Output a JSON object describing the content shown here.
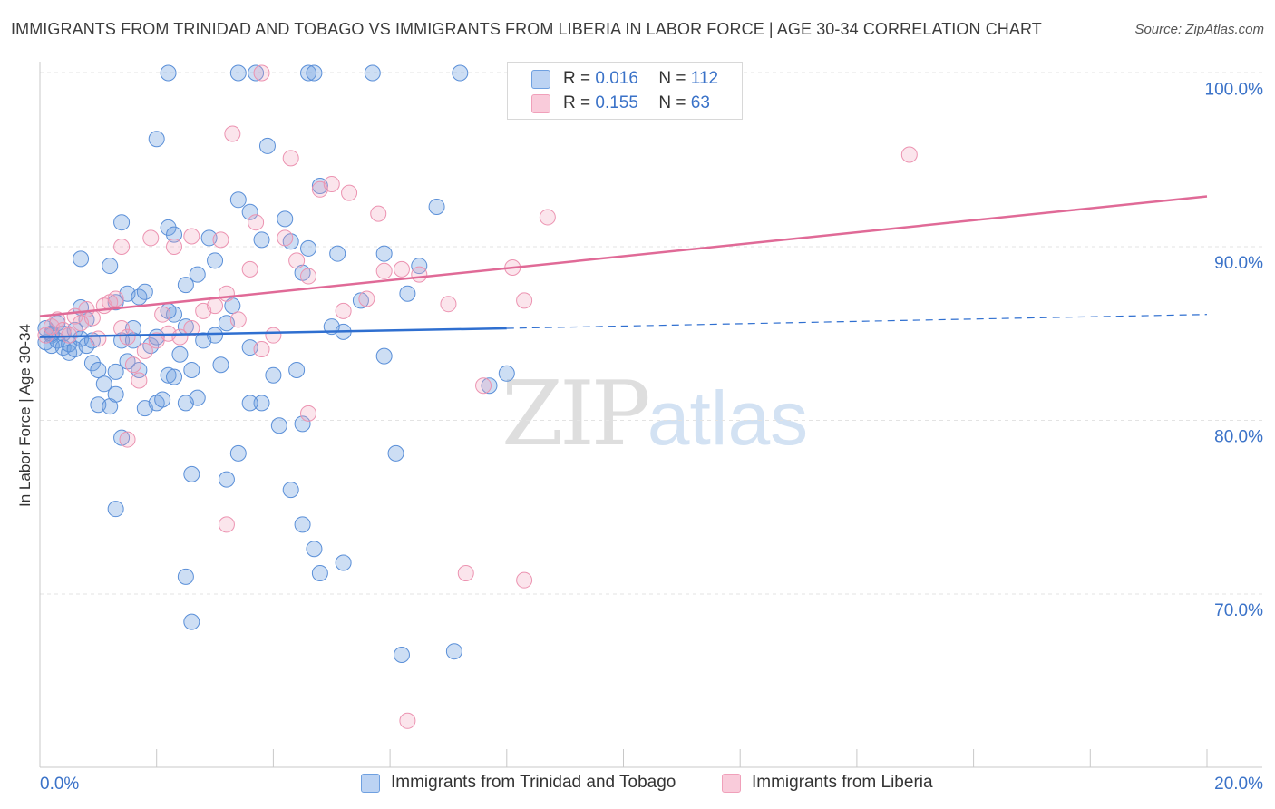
{
  "title": "IMMIGRANTS FROM TRINIDAD AND TOBAGO VS IMMIGRANTS FROM LIBERIA IN LABOR FORCE | AGE 30-34 CORRELATION CHART",
  "source": "Source: ZipAtlas.com",
  "watermark": {
    "zip": "ZIP",
    "atlas": "atlas"
  },
  "legend": {
    "r_label": "R =",
    "n_label": "N =",
    "rows": [
      {
        "r": "0.016",
        "n": "112",
        "color": "#6fa0e0"
      },
      {
        "r": "0.155",
        "n": "63",
        "color": "#f0a0ba"
      }
    ]
  },
  "chart_data": {
    "type": "scatter",
    "title": "IMMIGRANTS FROM TRINIDAD AND TOBAGO VS IMMIGRANTS FROM LIBERIA IN LABOR FORCE | AGE 30-34 CORRELATION CHART",
    "ylabel": "In Labor Force | Age 30-34",
    "xlabel": "",
    "xlim": [
      0,
      20
    ],
    "ylim": [
      60,
      102
    ],
    "x_tick_labels": [
      "0.0%",
      "20.0%"
    ],
    "y_tick_labels": [
      "100.0%",
      "90.0%",
      "80.0%",
      "70.0%"
    ],
    "y_ticks": [
      100,
      90,
      80,
      70
    ],
    "grid": true,
    "legend_position": "top-center",
    "series": [
      {
        "name": "Immigrants from Trinidad and Tobago",
        "color": "#6fa0e0",
        "r": 0.016,
        "n": 112,
        "trend": {
          "x0": 0,
          "y0": 84.8,
          "x1": 8,
          "y1": 85.3,
          "dashed_to_x": 20,
          "dashed_to_y": 86.1
        },
        "points": [
          [
            0.1,
            84.5
          ],
          [
            0.1,
            85.3
          ],
          [
            0.2,
            84.9
          ],
          [
            0.2,
            84.3
          ],
          [
            0.3,
            85.6
          ],
          [
            0.3,
            84.6
          ],
          [
            0.4,
            84.2
          ],
          [
            0.4,
            85.0
          ],
          [
            0.5,
            83.9
          ],
          [
            0.5,
            84.4
          ],
          [
            0.6,
            85.2
          ],
          [
            0.6,
            84.1
          ],
          [
            0.7,
            84.7
          ],
          [
            0.7,
            86.5
          ],
          [
            0.8,
            84.3
          ],
          [
            0.8,
            85.8
          ],
          [
            0.9,
            83.3
          ],
          [
            0.9,
            84.6
          ],
          [
            1.0,
            82.9
          ],
          [
            1.0,
            80.9
          ],
          [
            1.1,
            82.1
          ],
          [
            1.2,
            80.8
          ],
          [
            1.3,
            81.5
          ],
          [
            1.3,
            82.8
          ],
          [
            1.4,
            84.6
          ],
          [
            1.5,
            83.4
          ],
          [
            1.6,
            85.3
          ],
          [
            1.7,
            82.9
          ],
          [
            1.8,
            80.7
          ],
          [
            1.9,
            84.3
          ],
          [
            2.0,
            81.0
          ],
          [
            2.1,
            81.2
          ],
          [
            2.2,
            82.6
          ],
          [
            2.3,
            86.1
          ],
          [
            2.4,
            83.8
          ],
          [
            2.5,
            85.4
          ],
          [
            2.6,
            82.9
          ],
          [
            2.7,
            81.3
          ],
          [
            2.8,
            84.6
          ],
          [
            3.0,
            84.9
          ],
          [
            3.1,
            83.2
          ],
          [
            3.2,
            85.6
          ],
          [
            3.3,
            86.6
          ],
          [
            0.7,
            89.3
          ],
          [
            1.2,
            88.9
          ],
          [
            1.3,
            86.8
          ],
          [
            1.5,
            87.3
          ],
          [
            1.6,
            84.6
          ],
          [
            1.7,
            87.1
          ],
          [
            2.0,
            84.8
          ],
          [
            2.2,
            86.3
          ],
          [
            2.3,
            82.5
          ],
          [
            2.5,
            81.0
          ],
          [
            1.4,
            91.4
          ],
          [
            1.8,
            87.4
          ],
          [
            2.0,
            96.2
          ],
          [
            2.2,
            91.1
          ],
          [
            2.3,
            90.7
          ],
          [
            2.5,
            87.8
          ],
          [
            2.7,
            88.4
          ],
          [
            2.9,
            90.5
          ],
          [
            3.0,
            89.2
          ],
          [
            3.4,
            92.7
          ],
          [
            3.6,
            92.0
          ],
          [
            3.8,
            90.4
          ],
          [
            3.9,
            95.8
          ],
          [
            4.2,
            91.6
          ],
          [
            4.3,
            90.3
          ],
          [
            4.5,
            88.5
          ],
          [
            4.6,
            89.9
          ],
          [
            4.8,
            93.5
          ],
          [
            5.0,
            85.4
          ],
          [
            5.1,
            89.6
          ],
          [
            5.2,
            85.1
          ],
          [
            5.5,
            86.9
          ],
          [
            5.9,
            89.6
          ],
          [
            6.3,
            87.3
          ],
          [
            6.5,
            88.9
          ],
          [
            6.8,
            92.3
          ],
          [
            3.6,
            84.2
          ],
          [
            4.0,
            82.6
          ],
          [
            4.1,
            79.7
          ],
          [
            4.3,
            76.0
          ],
          [
            4.5,
            79.8
          ],
          [
            4.5,
            74.0
          ],
          [
            4.7,
            72.6
          ],
          [
            4.8,
            71.2
          ],
          [
            5.2,
            71.8
          ],
          [
            3.8,
            81.0
          ],
          [
            3.6,
            81.0
          ],
          [
            3.4,
            78.1
          ],
          [
            3.2,
            76.6
          ],
          [
            2.6,
            76.9
          ],
          [
            2.5,
            71.0
          ],
          [
            2.6,
            68.4
          ],
          [
            1.3,
            74.9
          ],
          [
            1.4,
            79.0
          ],
          [
            4.4,
            82.9
          ],
          [
            5.9,
            83.7
          ],
          [
            6.1,
            78.1
          ],
          [
            6.2,
            66.5
          ],
          [
            7.1,
            66.7
          ],
          [
            7.7,
            82.0
          ],
          [
            8.0,
            82.7
          ],
          [
            2.2,
            100.0
          ],
          [
            3.4,
            100.0
          ],
          [
            3.7,
            100.0
          ],
          [
            4.6,
            100.0
          ],
          [
            4.7,
            100.0
          ],
          [
            5.7,
            100.0
          ],
          [
            7.2,
            100.0
          ],
          [
            0.2,
            85.0
          ]
        ]
      },
      {
        "name": "Immigrants from Liberia",
        "color": "#f0a0ba",
        "r": 0.155,
        "n": 63,
        "trend": {
          "x0": 0,
          "y0": 86.0,
          "x1": 20,
          "y1": 92.9
        },
        "points": [
          [
            0.1,
            84.9
          ],
          [
            0.2,
            85.4
          ],
          [
            0.3,
            85.8
          ],
          [
            0.4,
            85.2
          ],
          [
            0.5,
            84.9
          ],
          [
            0.6,
            86.0
          ],
          [
            0.7,
            85.6
          ],
          [
            0.8,
            86.4
          ],
          [
            0.9,
            85.9
          ],
          [
            1.0,
            84.7
          ],
          [
            1.1,
            86.6
          ],
          [
            1.2,
            86.8
          ],
          [
            1.3,
            87.0
          ],
          [
            1.4,
            85.3
          ],
          [
            1.5,
            84.8
          ],
          [
            1.6,
            83.2
          ],
          [
            1.7,
            82.3
          ],
          [
            1.8,
            84.0
          ],
          [
            2.0,
            84.6
          ],
          [
            2.1,
            86.1
          ],
          [
            2.2,
            85.0
          ],
          [
            2.4,
            84.8
          ],
          [
            2.6,
            85.3
          ],
          [
            2.8,
            86.3
          ],
          [
            3.0,
            86.6
          ],
          [
            3.2,
            87.3
          ],
          [
            3.4,
            85.8
          ],
          [
            3.6,
            88.7
          ],
          [
            3.8,
            84.1
          ],
          [
            4.0,
            84.9
          ],
          [
            4.2,
            90.5
          ],
          [
            4.4,
            89.2
          ],
          [
            4.6,
            88.3
          ],
          [
            4.8,
            93.3
          ],
          [
            5.0,
            93.6
          ],
          [
            5.2,
            86.3
          ],
          [
            5.6,
            87.0
          ],
          [
            5.9,
            88.6
          ],
          [
            6.2,
            88.7
          ],
          [
            6.5,
            88.4
          ],
          [
            7.0,
            86.7
          ],
          [
            7.6,
            82.0
          ],
          [
            8.1,
            88.8
          ],
          [
            8.3,
            86.9
          ],
          [
            8.7,
            91.7
          ],
          [
            1.4,
            90.0
          ],
          [
            1.9,
            90.5
          ],
          [
            2.3,
            90.0
          ],
          [
            2.6,
            90.6
          ],
          [
            3.1,
            90.4
          ],
          [
            3.3,
            96.5
          ],
          [
            3.7,
            91.4
          ],
          [
            4.3,
            95.1
          ],
          [
            5.3,
            93.1
          ],
          [
            5.8,
            91.9
          ],
          [
            7.3,
            71.2
          ],
          [
            8.3,
            70.8
          ],
          [
            4.6,
            80.4
          ],
          [
            3.2,
            74.0
          ],
          [
            1.5,
            78.9
          ],
          [
            3.8,
            100.0
          ],
          [
            6.3,
            62.7
          ],
          [
            14.9,
            95.3
          ]
        ]
      }
    ]
  },
  "bottom_legend": [
    {
      "label": "Immigrants from Trinidad and Tobago",
      "color": "#6fa0e0"
    },
    {
      "label": "Immigrants from Liberia",
      "color": "#f0a0ba"
    }
  ]
}
